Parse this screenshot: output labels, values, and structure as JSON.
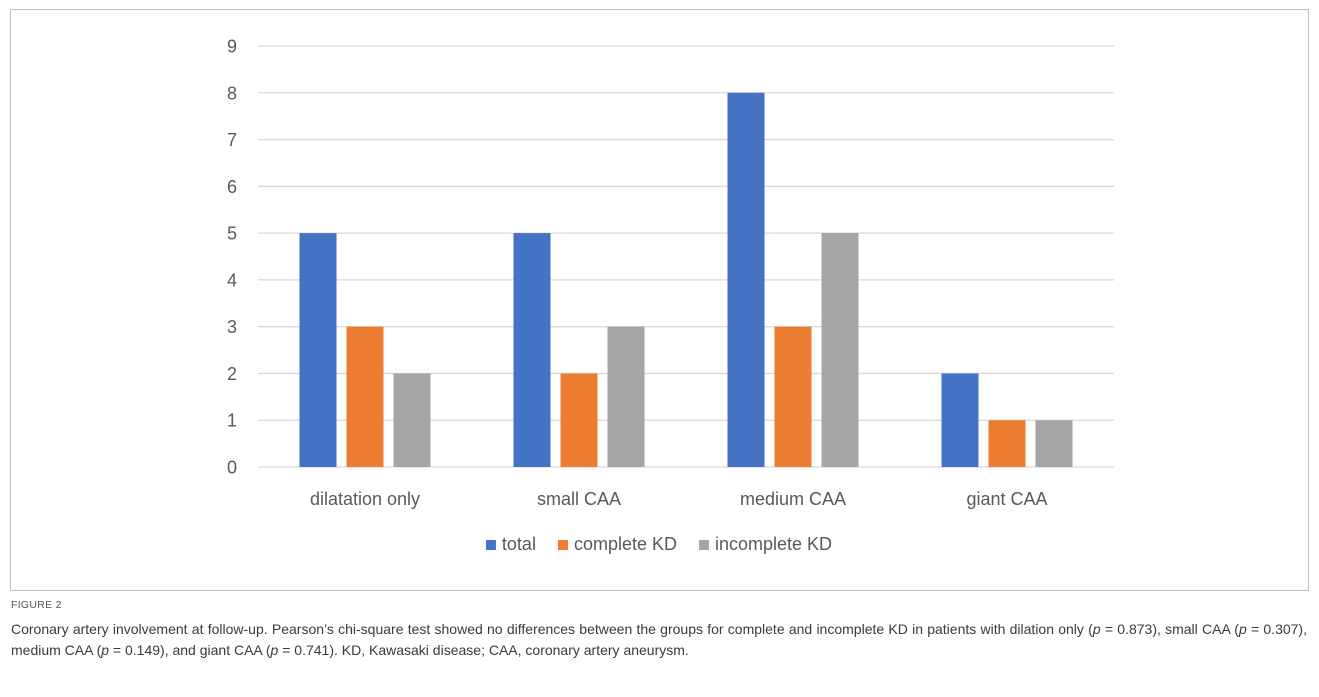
{
  "figure_label": "FIGURE 2",
  "caption_parts": [
    {
      "t": "Coronary artery involvement at follow-up. Pearson’s chi-square test showed no differences between the groups for complete and incomplete KD in patients with dilation only ("
    },
    {
      "t": "p",
      "i": true
    },
    {
      "t": " = 0.873), small CAA ("
    },
    {
      "t": "p",
      "i": true
    },
    {
      "t": " = 0.307), medium CAA ("
    },
    {
      "t": "p",
      "i": true
    },
    {
      "t": " = 0.149), and giant CAA ("
    },
    {
      "t": "p",
      "i": true
    },
    {
      "t": " = 0.741). KD, Kawasaki disease; CAA, coronary artery aneurysm."
    }
  ],
  "chart_data": {
    "type": "bar",
    "title": "",
    "xlabel": "",
    "ylabel": "",
    "categories": [
      "dilatation only",
      "small CAA",
      "medium CAA",
      "giant CAA"
    ],
    "series": [
      {
        "name": "total",
        "values": [
          5,
          5,
          8,
          2
        ],
        "color": "#4472C4"
      },
      {
        "name": "complete KD",
        "values": [
          3,
          2,
          3,
          1
        ],
        "color": "#ED7D31"
      },
      {
        "name": "incomplete KD",
        "values": [
          2,
          3,
          5,
          1
        ],
        "color": "#A5A5A5"
      }
    ],
    "ylim": [
      0,
      9
    ],
    "yticks": [
      "0",
      "1",
      "2",
      "3",
      "4",
      "5",
      "6",
      "7",
      "8",
      "9"
    ],
    "grid": true,
    "legend_position": "bottom"
  }
}
